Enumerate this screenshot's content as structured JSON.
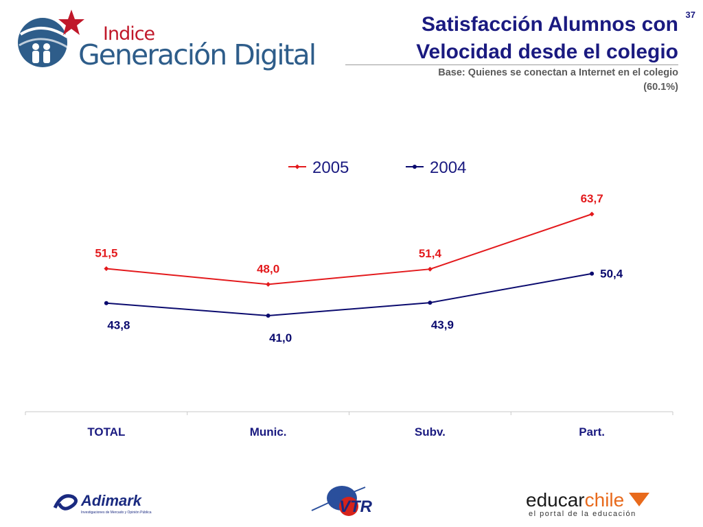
{
  "slide": {
    "number": "37"
  },
  "header": {
    "brand_small": "Indice",
    "brand_big": "Generación Digital",
    "title_line1": "Satisfacción Alumnos con",
    "title_line2": "Velocidad desde el colegio",
    "subtitle_line1": "Base: Quienes se conectan a Internet en el colegio",
    "subtitle_line2": "(60.1%)"
  },
  "chart_data": {
    "type": "line",
    "categories": [
      "TOTAL",
      "Munic.",
      "Subv.",
      "Part."
    ],
    "series": [
      {
        "name": "2005",
        "values": [
          51.5,
          48.0,
          51.4,
          63.7
        ],
        "labels": [
          "51,5",
          "48,0",
          "51,4",
          "63,7"
        ],
        "color": "#e3191c"
      },
      {
        "name": "2004",
        "values": [
          43.8,
          41.0,
          43.9,
          50.4
        ],
        "labels": [
          "43,8",
          "41,0",
          "43,9",
          "50,4"
        ],
        "color": "#0a0a6e"
      }
    ],
    "legend_position": "top-center",
    "grid": false,
    "category_label_color": "#1a1a80"
  },
  "footer": {
    "adimark_name": "Adimark",
    "adimark_tagline": "Investigaciones de Mercado y Opinión Pública",
    "vtr_name": "VTR",
    "educarchile_part1": "educar",
    "educarchile_part2": "chile",
    "educarchile_tagline": "el portal de la educación"
  }
}
